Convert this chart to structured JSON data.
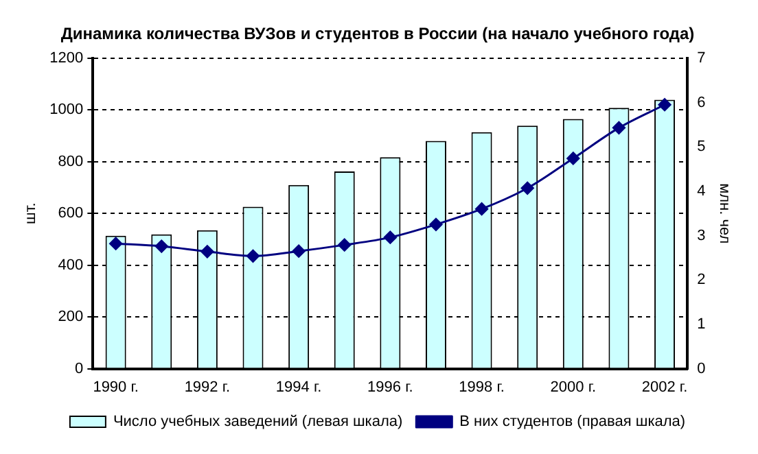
{
  "chart_data": {
    "type": "bar",
    "title": "Динамика количества ВУЗов и студентов в России (на начало учебного года)",
    "ylabel": "шт.",
    "y2label": "млн. чел",
    "categories": [
      "1990 г.",
      null,
      "1992 г.",
      null,
      "1994 г.",
      null,
      "1996 г.",
      null,
      "1998 г.",
      null,
      "2000 г.",
      null,
      "2002 г."
    ],
    "series": [
      {
        "name": "Число учебных заведений (левая шкала)",
        "color": "#ccffff",
        "values": [
          514,
          519,
          535,
          626,
          710,
          762,
          817,
          880,
          914,
          939,
          965,
          1008,
          1039
        ]
      },
      {
        "name": "В них студентов (правая шкала)",
        "type": "line",
        "axis": "y2",
        "color": "#000080",
        "marker": "diamond",
        "values": [
          2.82,
          2.76,
          2.64,
          2.54,
          2.65,
          2.79,
          2.96,
          3.25,
          3.6,
          4.07,
          4.74,
          5.43,
          5.95
        ]
      }
    ],
    "ylim": [
      0,
      1200
    ],
    "yticks": [
      0,
      200,
      400,
      600,
      800,
      1000,
      1200
    ],
    "y2lim": [
      0,
      7
    ],
    "y2ticks": [
      0,
      1,
      2,
      3,
      4,
      5,
      6,
      7
    ],
    "grid": "y",
    "legend": "bottom"
  }
}
